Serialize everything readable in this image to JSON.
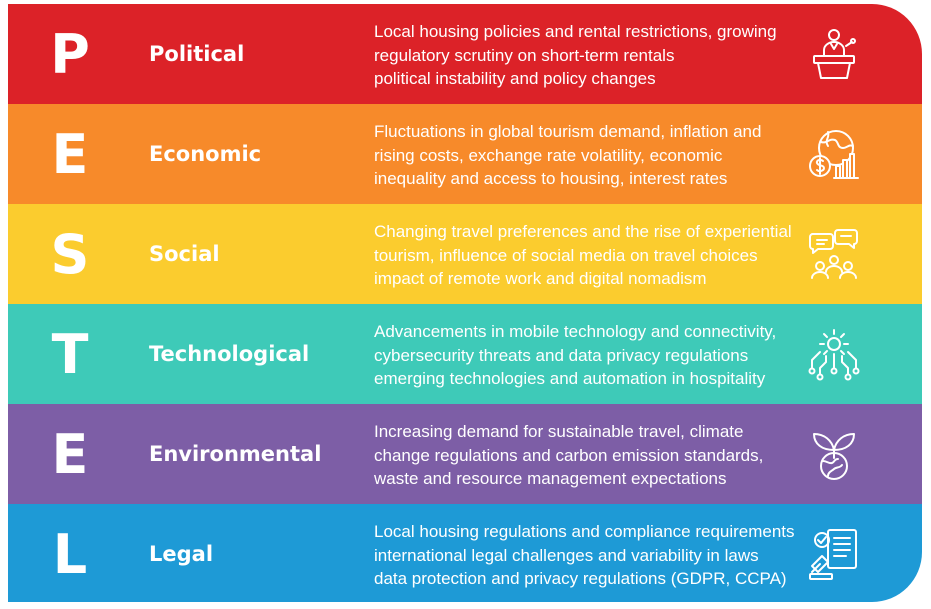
{
  "rows": [
    {
      "letter": "P",
      "title": "Political",
      "color": "#dc2228",
      "icon": "podium-speaker-icon",
      "lines": [
        "Local housing policies and rental restrictions, growing",
        "regulatory scrutiny on short-term rentals",
        "political instability and policy changes"
      ]
    },
    {
      "letter": "E",
      "title": "Economic",
      "color": "#f78a2a",
      "icon": "globe-dollar-chart-icon",
      "lines": [
        "Fluctuations in global tourism demand, inflation and",
        "rising costs, exchange rate volatility, economic",
        "inequality and access to housing, interest rates"
      ]
    },
    {
      "letter": "S",
      "title": "Social",
      "color": "#fbcc2e",
      "icon": "people-chat-icon",
      "lines": [
        "Changing travel preferences and the rise of experiential",
        "tourism, influence of social media on travel choices",
        "impact of remote work and digital nomadism"
      ]
    },
    {
      "letter": "T",
      "title": "Technological",
      "color": "#3ecab8",
      "icon": "gear-circuit-icon",
      "lines": [
        "Advancements in mobile technology and connectivity,",
        "cybersecurity threats and data privacy regulations",
        "emerging technologies and automation in hospitality"
      ]
    },
    {
      "letter": "E",
      "title": "Environmental",
      "color": "#7d5ea6",
      "icon": "globe-leaf-icon",
      "lines": [
        "Increasing demand for sustainable travel, climate",
        "change regulations and carbon emission standards,",
        "waste and resource management expectations"
      ]
    },
    {
      "letter": "L",
      "title": "Legal",
      "color": "#1e9ad6",
      "icon": "document-gavel-icon",
      "lines": [
        "Local housing regulations and compliance requirements",
        "international legal challenges and variability in laws",
        "data protection and privacy regulations (GDPR, CCPA)"
      ]
    }
  ]
}
